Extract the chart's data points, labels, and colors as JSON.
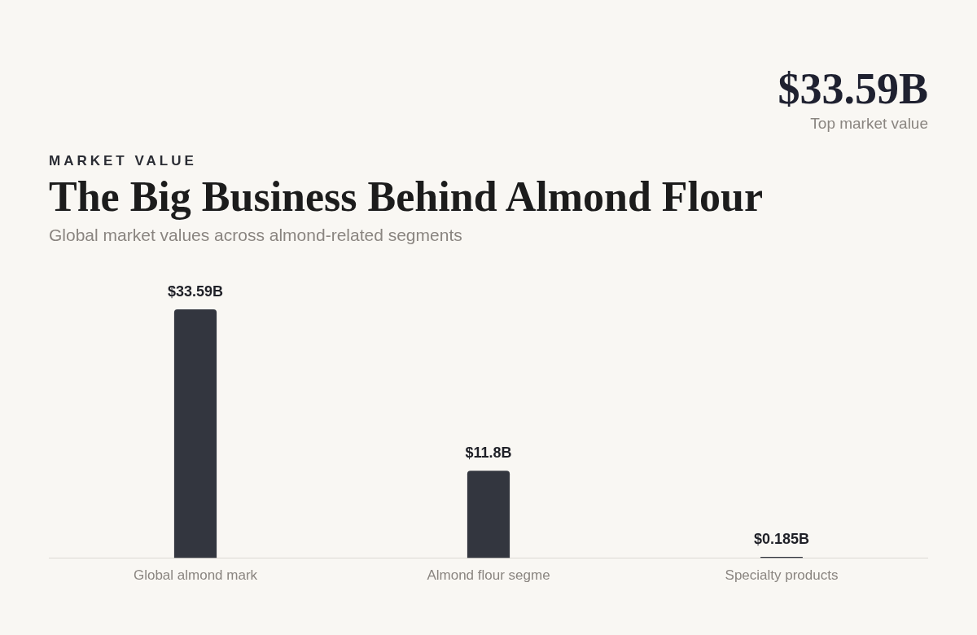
{
  "chart_data": {
    "type": "bar",
    "title": "The Big Business Behind Almond Flour",
    "subtitle": "Global market values across almond-related segments",
    "annotations": [
      "MARKET VALUE",
      "$33.59B",
      "Top market value"
    ],
    "categories": [
      "Global almond mark",
      "Almond flour segme",
      "Specialty products"
    ],
    "values": [
      33.59,
      11.8,
      0.185
    ],
    "value_labels": [
      "$33.59B",
      "$11.8B",
      "$0.185B"
    ],
    "color": "#33363f",
    "grid": false,
    "legend": false
  }
}
